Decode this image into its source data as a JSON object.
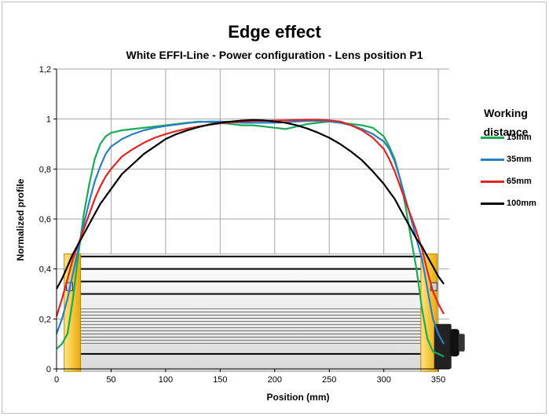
{
  "chart_data": {
    "type": "line",
    "title": "Edge effect",
    "subtitle": "White EFFI-Line - Power configuration - Lens position P1",
    "xlabel": "Position (mm)",
    "ylabel": "Normalized profile",
    "xlim": [
      0,
      360
    ],
    "ylim": [
      0,
      1.2
    ],
    "xticks": [
      "0",
      "50",
      "100",
      "150",
      "200",
      "250",
      "300",
      "350"
    ],
    "yticks": [
      "0",
      "0,2",
      "0,4",
      "0,6",
      "0,8",
      "1",
      "1,2"
    ],
    "grid": true,
    "legend_title": [
      "Working",
      "distance"
    ],
    "legend_position": "right",
    "series": [
      {
        "name": "15mm",
        "color": "#1aaa55",
        "x": [
          0,
          5,
          10,
          15,
          20,
          25,
          30,
          35,
          40,
          45,
          50,
          55,
          60,
          70,
          80,
          90,
          100,
          110,
          120,
          130,
          140,
          150,
          160,
          170,
          180,
          190,
          200,
          210,
          220,
          230,
          240,
          250,
          260,
          270,
          280,
          290,
          300,
          305,
          310,
          315,
          320,
          325,
          330,
          335,
          340,
          345,
          350,
          355
        ],
        "y": [
          0.08,
          0.1,
          0.14,
          0.28,
          0.46,
          0.62,
          0.74,
          0.84,
          0.9,
          0.93,
          0.945,
          0.95,
          0.955,
          0.96,
          0.965,
          0.97,
          0.975,
          0.98,
          0.985,
          0.99,
          0.988,
          0.985,
          0.98,
          0.975,
          0.975,
          0.97,
          0.965,
          0.96,
          0.97,
          0.98,
          0.985,
          0.99,
          0.985,
          0.98,
          0.975,
          0.965,
          0.93,
          0.89,
          0.84,
          0.76,
          0.65,
          0.52,
          0.4,
          0.24,
          0.12,
          0.07,
          0.06,
          0.05
        ]
      },
      {
        "name": "35mm",
        "color": "#2a7fc4",
        "x": [
          0,
          5,
          10,
          15,
          20,
          25,
          30,
          35,
          40,
          45,
          50,
          60,
          70,
          80,
          90,
          100,
          110,
          120,
          130,
          140,
          150,
          160,
          170,
          180,
          190,
          200,
          210,
          220,
          230,
          240,
          250,
          260,
          270,
          280,
          290,
          300,
          305,
          310,
          315,
          320,
          325,
          330,
          335,
          340,
          345,
          350,
          355
        ],
        "y": [
          0.14,
          0.2,
          0.28,
          0.38,
          0.48,
          0.58,
          0.67,
          0.75,
          0.81,
          0.86,
          0.89,
          0.92,
          0.94,
          0.955,
          0.965,
          0.972,
          0.978,
          0.984,
          0.988,
          0.99,
          0.99,
          0.988,
          0.985,
          0.985,
          0.985,
          0.985,
          0.987,
          0.99,
          0.992,
          0.993,
          0.99,
          0.985,
          0.975,
          0.96,
          0.94,
          0.91,
          0.88,
          0.83,
          0.76,
          0.68,
          0.6,
          0.52,
          0.44,
          0.32,
          0.2,
          0.14,
          0.1
        ]
      },
      {
        "name": "65mm",
        "color": "#e0241f",
        "x": [
          0,
          5,
          10,
          15,
          20,
          25,
          30,
          35,
          40,
          45,
          50,
          60,
          70,
          80,
          90,
          100,
          110,
          120,
          130,
          140,
          150,
          160,
          170,
          180,
          190,
          200,
          210,
          220,
          230,
          240,
          250,
          260,
          270,
          280,
          290,
          300,
          305,
          310,
          315,
          320,
          325,
          330,
          335,
          340,
          345,
          350,
          355
        ],
        "y": [
          0.21,
          0.28,
          0.36,
          0.44,
          0.5,
          0.56,
          0.62,
          0.68,
          0.73,
          0.77,
          0.8,
          0.85,
          0.88,
          0.905,
          0.925,
          0.94,
          0.952,
          0.962,
          0.97,
          0.977,
          0.983,
          0.987,
          0.99,
          0.992,
          0.993,
          0.994,
          0.995,
          0.996,
          0.997,
          0.997,
          0.995,
          0.99,
          0.975,
          0.955,
          0.925,
          0.88,
          0.84,
          0.79,
          0.73,
          0.67,
          0.61,
          0.55,
          0.48,
          0.39,
          0.31,
          0.26,
          0.22
        ]
      },
      {
        "name": "100mm",
        "color": "#000000",
        "x": [
          0,
          5,
          10,
          15,
          20,
          25,
          30,
          35,
          40,
          45,
          50,
          60,
          70,
          80,
          90,
          100,
          110,
          120,
          130,
          140,
          150,
          160,
          170,
          180,
          190,
          200,
          210,
          220,
          230,
          240,
          250,
          260,
          270,
          280,
          290,
          300,
          305,
          310,
          315,
          320,
          325,
          330,
          335,
          340,
          345,
          350,
          355
        ],
        "y": [
          0.32,
          0.36,
          0.41,
          0.46,
          0.5,
          0.54,
          0.58,
          0.62,
          0.66,
          0.69,
          0.72,
          0.78,
          0.82,
          0.86,
          0.89,
          0.92,
          0.94,
          0.955,
          0.968,
          0.978,
          0.985,
          0.99,
          0.994,
          0.996,
          0.995,
          0.99,
          0.985,
          0.975,
          0.962,
          0.945,
          0.925,
          0.9,
          0.87,
          0.835,
          0.79,
          0.74,
          0.71,
          0.68,
          0.64,
          0.6,
          0.56,
          0.52,
          0.49,
          0.45,
          0.41,
          0.37,
          0.34
        ]
      }
    ]
  },
  "colors": {
    "grid": "#a6a6a6",
    "housing_fill": "#f5c842",
    "housing_stroke": "#b28a00"
  },
  "decorations": [
    "light-bar-illustration",
    "lamp-housing-left",
    "lamp-housing-right",
    "camera-lens-icon"
  ]
}
